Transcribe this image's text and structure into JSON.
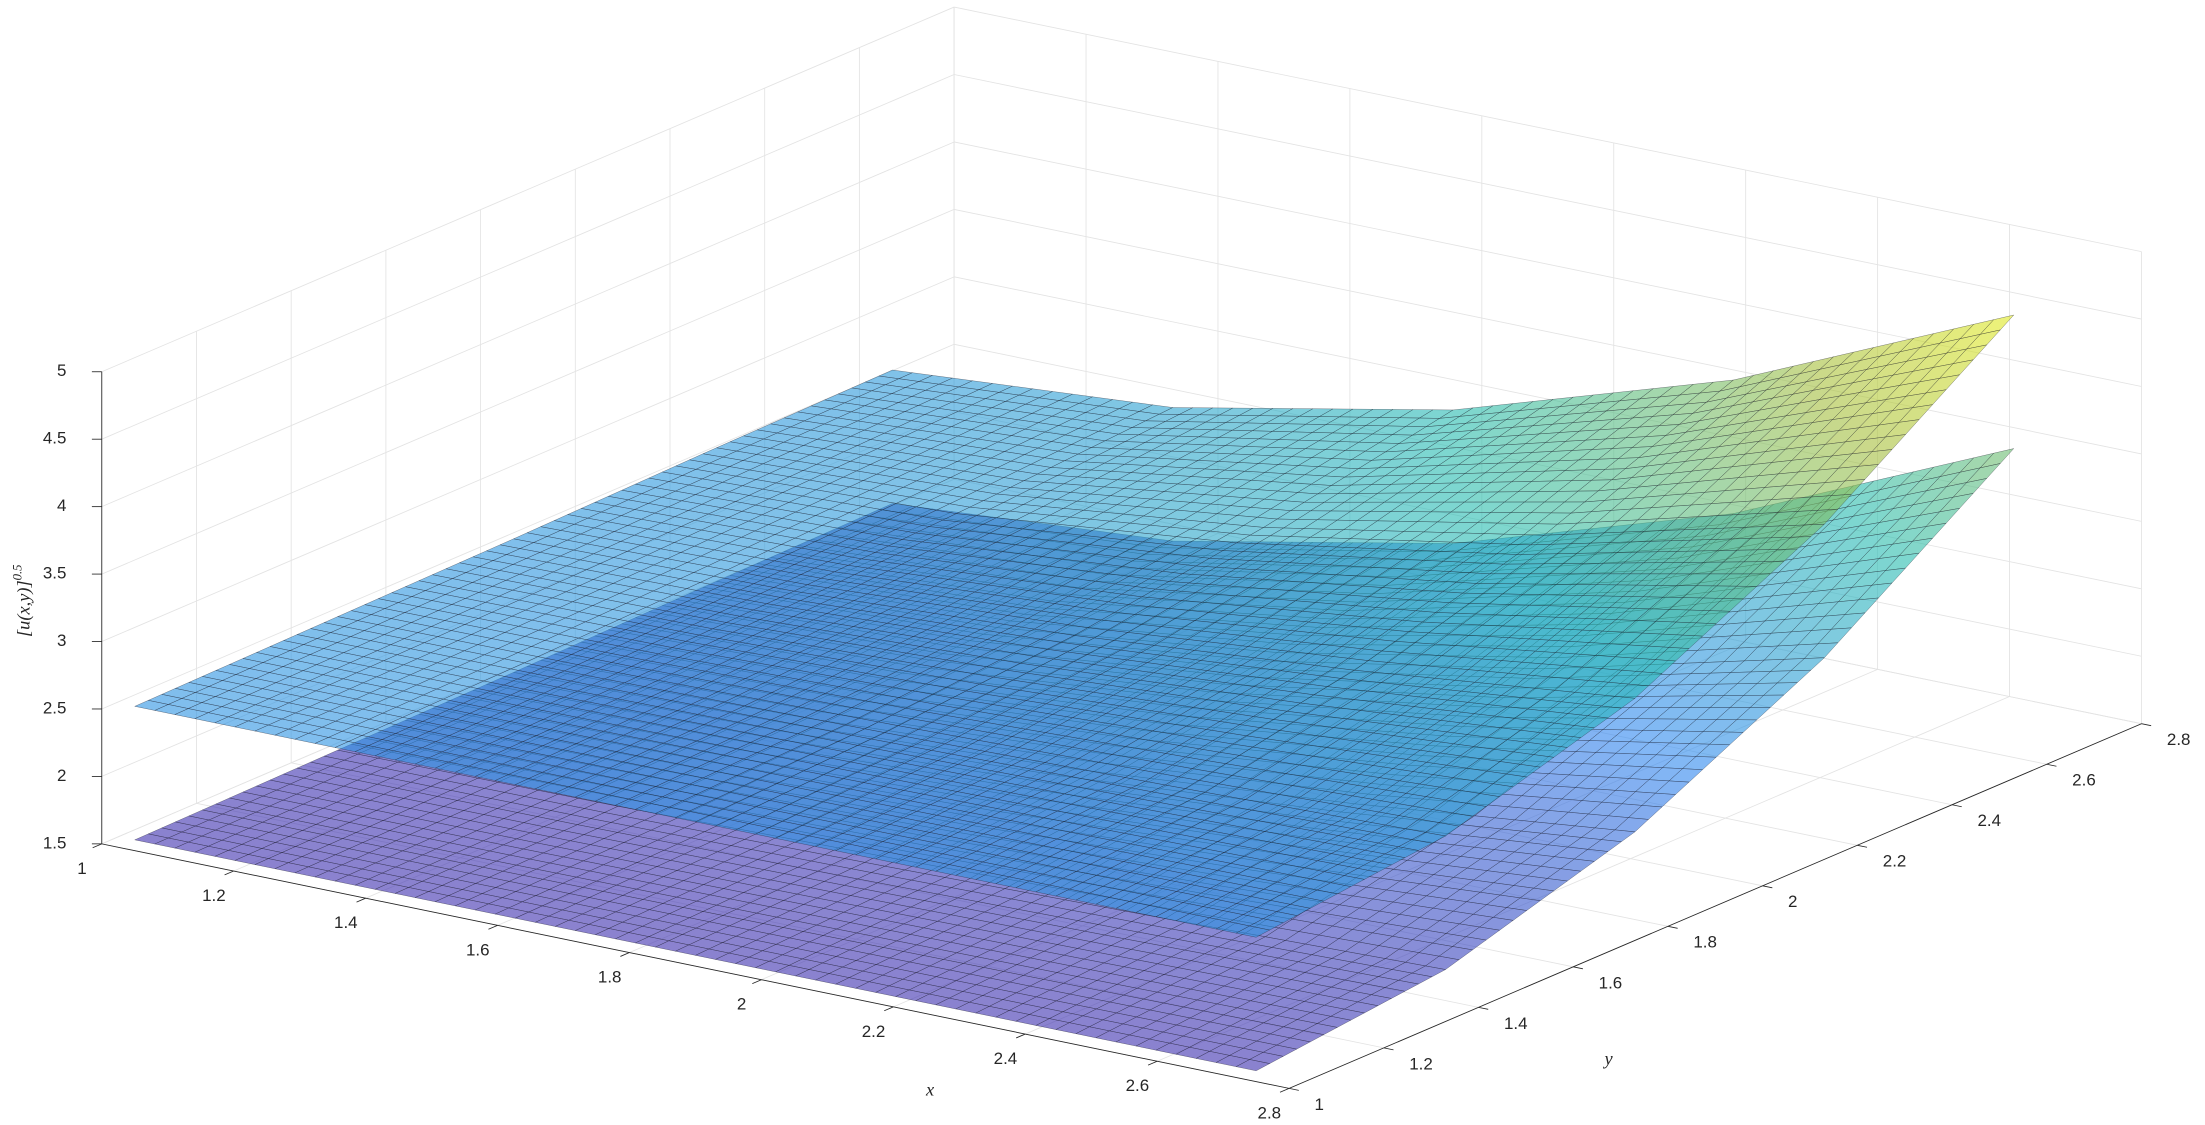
{
  "chart_data": {
    "type": "surface3d",
    "xlabel": "x",
    "ylabel": "y",
    "zlabel": {
      "base": "[u(x,y)]",
      "superscript": "0.5"
    },
    "xlim": [
      1,
      2.8
    ],
    "ylim": [
      1,
      2.8
    ],
    "zlim": [
      1.5,
      5
    ],
    "xticks": [
      1,
      1.2,
      1.4,
      1.6,
      1.8,
      2,
      2.2,
      2.4,
      2.6,
      2.8
    ],
    "yticks": [
      1,
      1.2,
      1.4,
      1.6,
      1.8,
      2,
      2.2,
      2.4,
      2.6,
      2.8
    ],
    "zticks": [
      1.5,
      2,
      2.5,
      3,
      3.5,
      4,
      4.5,
      5
    ],
    "grid": true,
    "colormap": [
      "#3e26a8",
      "#2e87f0",
      "#26bcb0",
      "#a5be3c",
      "#f9fb15"
    ],
    "face_alpha": 0.6,
    "edge_color": "#1c1c28",
    "x": [
      1.05,
      1.475,
      1.9,
      2.325,
      2.75
    ],
    "y": [
      1,
      1.4,
      1.8,
      2.2,
      2.6
    ],
    "series": [
      {
        "values": [
          [
            1.58,
            1.58,
            1.58,
            1.58,
            1.58
          ],
          [
            1.6,
            1.61,
            1.64,
            1.68,
            1.73
          ],
          [
            1.62,
            1.66,
            1.76,
            1.93,
            2.15
          ],
          [
            1.65,
            1.73,
            1.96,
            2.33,
            2.84
          ],
          [
            1.67,
            1.82,
            2.23,
            2.88,
            3.79
          ]
        ]
      },
      {
        "values": [
          [
            2.57,
            2.57,
            2.57,
            2.57,
            2.57
          ],
          [
            2.59,
            2.6,
            2.63,
            2.67,
            2.72
          ],
          [
            2.61,
            2.65,
            2.75,
            2.92,
            3.14
          ],
          [
            2.64,
            2.72,
            2.95,
            3.32,
            3.83
          ],
          [
            2.66,
            2.81,
            3.22,
            3.87,
            4.78
          ]
        ]
      }
    ]
  }
}
